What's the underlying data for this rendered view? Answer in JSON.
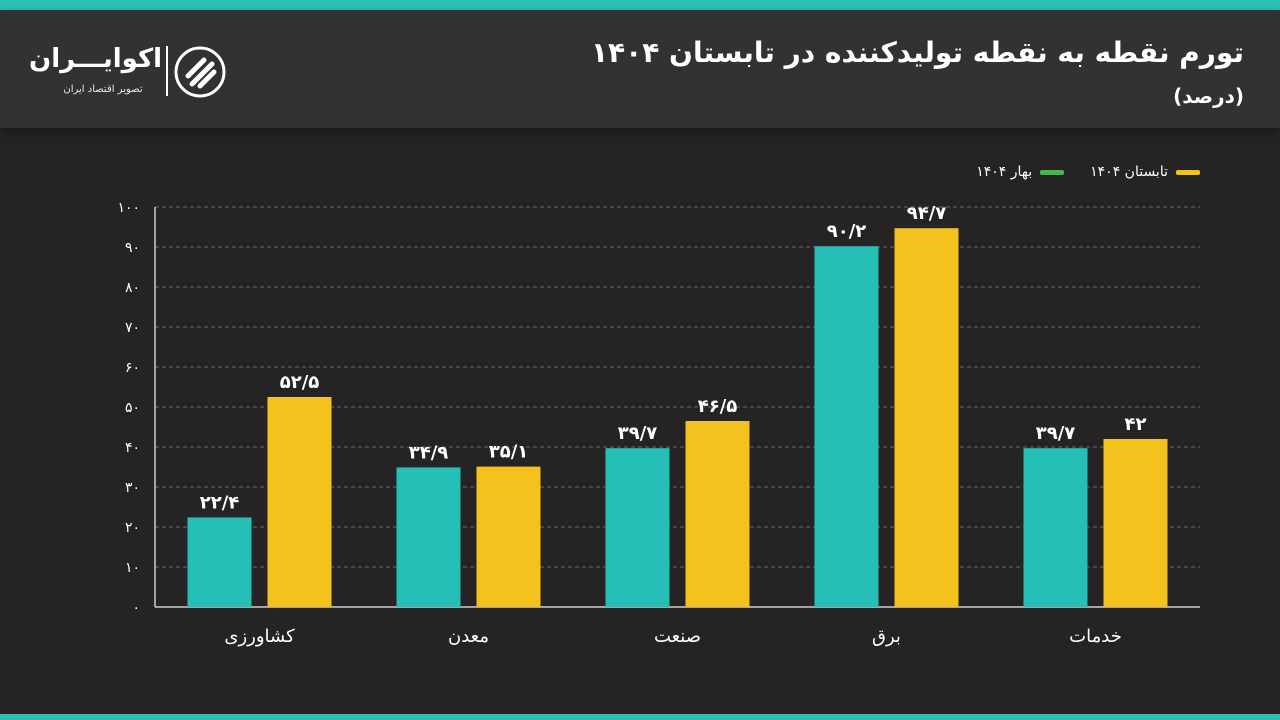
{
  "header": {
    "title": "تورم نقطه به نقطه تولیدکننده در تابستان ۱۴۰۴",
    "subtitle": "(درصد)"
  },
  "logo": {
    "name": "اکوایـــران",
    "tagline": "تصویر اقتصاد ایران"
  },
  "colors": {
    "accent": "#2dc1b6",
    "series_spring": "#26bfb8",
    "series_summer": "#f4c21c",
    "legend_spring": "#3fba4a"
  },
  "legend": {
    "summer_label": "تابستان ۱۴۰۴",
    "spring_label": "بهار ۱۴۰۴"
  },
  "chart_data": {
    "type": "bar",
    "title": "تورم نقطه به نقطه تولیدکننده در تابستان ۱۴۰۴",
    "ylabel": "(درصد)",
    "ylim": [
      0,
      100
    ],
    "yticks": [
      0,
      10,
      20,
      30,
      40,
      50,
      60,
      70,
      80,
      90,
      100
    ],
    "ytick_labels": [
      "۰",
      "۱۰",
      "۲۰",
      "۳۰",
      "۴۰",
      "۵۰",
      "۶۰",
      "۷۰",
      "۸۰",
      "۹۰",
      "۱۰۰"
    ],
    "categories": [
      "کشاورزی",
      "معدن",
      "صنعت",
      "برق",
      "خدمات"
    ],
    "series": [
      {
        "name": "بهار ۱۴۰۴",
        "values": [
          22.4,
          34.9,
          39.7,
          90.2,
          39.7
        ],
        "labels": [
          "۲۲/۴",
          "۳۴/۹",
          "۳۹/۷",
          "۹۰/۲",
          "۳۹/۷"
        ]
      },
      {
        "name": "تابستان ۱۴۰۴",
        "values": [
          52.5,
          35.1,
          46.5,
          94.7,
          42
        ],
        "labels": [
          "۵۲/۵",
          "۳۵/۱",
          "۴۶/۵",
          "۹۴/۷",
          "۴۲"
        ]
      }
    ],
    "grid": true,
    "legend_position": "top-right"
  }
}
